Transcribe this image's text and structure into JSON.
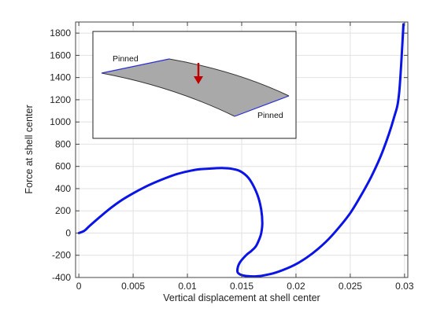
{
  "chart_data": {
    "type": "line",
    "xlabel": "Vertical displacement at shell center",
    "ylabel": "Force at shell center",
    "xlim": [
      -0.0003,
      0.0303
    ],
    "ylim": [
      -400,
      1900
    ],
    "xticks": [
      0,
      0.005,
      0.01,
      0.015,
      0.02,
      0.025,
      0.03
    ],
    "xtick_labels": [
      "0",
      "0.005",
      "0.01",
      "0.015",
      "0.02",
      "0.025",
      "0.03"
    ],
    "yticks": [
      -400,
      -200,
      0,
      200,
      400,
      600,
      800,
      1000,
      1200,
      1400,
      1600,
      1800
    ],
    "ytick_labels": [
      "-400",
      "-200",
      "0",
      "200",
      "400",
      "600",
      "800",
      "1000",
      "1200",
      "1400",
      "1600",
      "1800"
    ],
    "grid": true,
    "line_color": "#0a14e6",
    "series": [
      {
        "x": [
          0,
          0.0005,
          0.001,
          0.002,
          0.003,
          0.004,
          0.005,
          0.006,
          0.007,
          0.008,
          0.009,
          0.01,
          0.011,
          0.012,
          0.0125,
          0.0133,
          0.014,
          0.0148,
          0.0155,
          0.016,
          0.0165,
          0.0168,
          0.0169,
          0.0168,
          0.0166,
          0.0163,
          0.0159,
          0.0154,
          0.0148,
          0.0146,
          0.0148,
          0.0153,
          0.016,
          0.0165,
          0.017,
          0.018,
          0.019,
          0.02,
          0.021,
          0.022,
          0.023,
          0.024,
          0.025,
          0.026,
          0.027,
          0.028,
          0.029,
          0.0295,
          0.0299
        ],
        "y": [
          0,
          20,
          65,
          150,
          230,
          300,
          358,
          410,
          455,
          495,
          530,
          555,
          573,
          580,
          583,
          585,
          580,
          560,
          510,
          440,
          330,
          210,
          90,
          0,
          -60,
          -120,
          -160,
          -200,
          -270,
          -340,
          -370,
          -385,
          -390,
          -388,
          -382,
          -360,
          -325,
          -280,
          -220,
          -145,
          -55,
          55,
          180,
          340,
          520,
          740,
          1030,
          1260,
          1880
        ]
      }
    ]
  }
}
